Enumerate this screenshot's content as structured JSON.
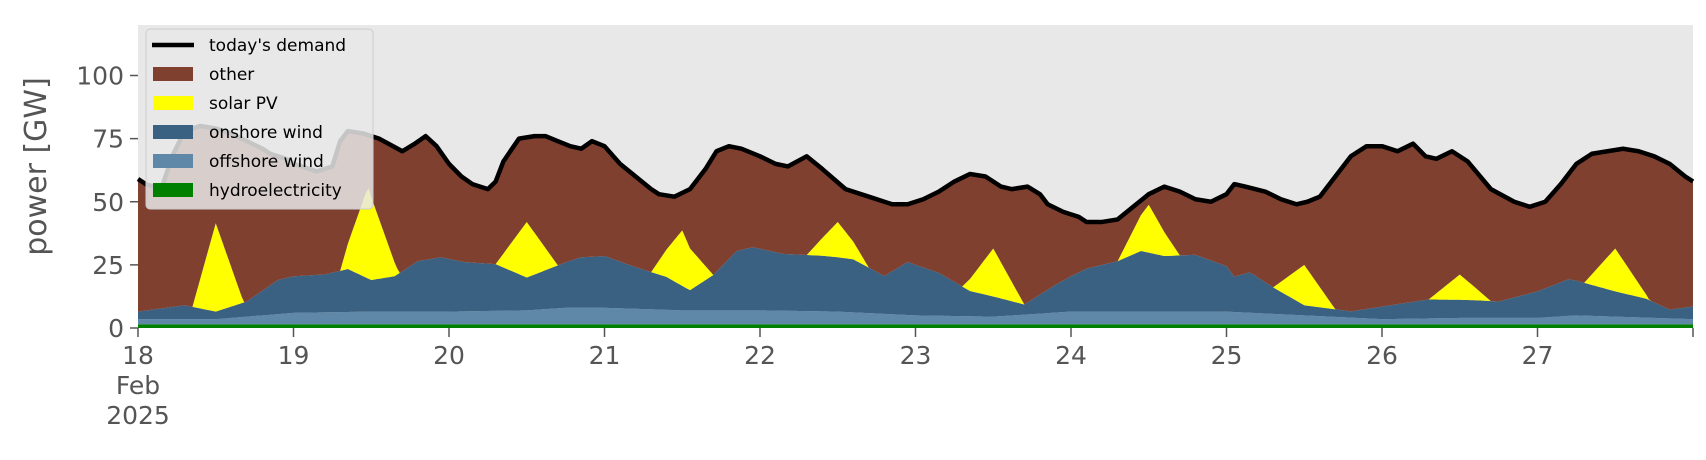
{
  "chart_data": {
    "type": "area",
    "ylabel": "power [GW]",
    "xlabel": "",
    "ylim": [
      0,
      120
    ],
    "xlim_days": [
      18,
      28
    ],
    "month": "Feb",
    "year": "2025",
    "yticks": [
      0,
      25,
      50,
      75,
      100
    ],
    "xticks": [
      {
        "day": 18,
        "label": "18"
      },
      {
        "day": 19,
        "label": "19"
      },
      {
        "day": 20,
        "label": "20"
      },
      {
        "day": 21,
        "label": "21"
      },
      {
        "day": 22,
        "label": "22"
      },
      {
        "day": 23,
        "label": "23"
      },
      {
        "day": 24,
        "label": "24"
      },
      {
        "day": 25,
        "label": "25"
      },
      {
        "day": 26,
        "label": "26"
      },
      {
        "day": 27,
        "label": "27"
      }
    ],
    "legend_placement": "upper-left",
    "grid": false,
    "background": "#e8e8e8",
    "series": [
      {
        "name": "hydroelectricity",
        "kind": "stack",
        "color": "#008000",
        "points": [
          [
            18.0,
            1.5
          ],
          [
            19.0,
            1.5
          ],
          [
            20.0,
            1.5
          ],
          [
            21.0,
            1.5
          ],
          [
            22.0,
            1.5
          ],
          [
            23.0,
            1.5
          ],
          [
            24.0,
            1.5
          ],
          [
            25.0,
            1.5
          ],
          [
            26.0,
            1.5
          ],
          [
            27.0,
            1.5
          ],
          [
            28.0,
            1.5
          ]
        ]
      },
      {
        "name": "offshore wind",
        "kind": "stack",
        "color": "#5f87a8",
        "points": [
          [
            18.0,
            2.0
          ],
          [
            18.5,
            2.0
          ],
          [
            19.0,
            4.5
          ],
          [
            19.5,
            5.0
          ],
          [
            20.0,
            5.0
          ],
          [
            20.5,
            5.5
          ],
          [
            20.75,
            6.5
          ],
          [
            21.0,
            6.5
          ],
          [
            21.5,
            5.5
          ],
          [
            22.0,
            5.5
          ],
          [
            22.5,
            5.0
          ],
          [
            23.0,
            3.5
          ],
          [
            23.5,
            3.0
          ],
          [
            23.75,
            4.0
          ],
          [
            24.0,
            5.0
          ],
          [
            24.5,
            5.0
          ],
          [
            25.0,
            5.0
          ],
          [
            25.5,
            3.5
          ],
          [
            26.0,
            2.0
          ],
          [
            26.5,
            2.5
          ],
          [
            27.0,
            2.5
          ],
          [
            27.25,
            3.5
          ],
          [
            27.5,
            3.0
          ],
          [
            28.0,
            2.0
          ]
        ]
      },
      {
        "name": "onshore wind",
        "kind": "stack",
        "color": "#3b6182",
        "points": [
          [
            18.0,
            3.0
          ],
          [
            18.3,
            5.5
          ],
          [
            18.5,
            3.0
          ],
          [
            18.7,
            6.0
          ],
          [
            18.9,
            13.5
          ],
          [
            19.0,
            14.5
          ],
          [
            19.2,
            15.0
          ],
          [
            19.35,
            17.0
          ],
          [
            19.5,
            12.5
          ],
          [
            19.65,
            14.0
          ],
          [
            19.8,
            20.0
          ],
          [
            19.95,
            21.5
          ],
          [
            20.1,
            19.5
          ],
          [
            20.3,
            18.5
          ],
          [
            20.5,
            13.0
          ],
          [
            20.7,
            17.0
          ],
          [
            20.85,
            20.0
          ],
          [
            21.0,
            20.5
          ],
          [
            21.2,
            16.5
          ],
          [
            21.4,
            13.0
          ],
          [
            21.55,
            8.0
          ],
          [
            21.7,
            14.0
          ],
          [
            21.85,
            23.5
          ],
          [
            21.95,
            25.0
          ],
          [
            22.15,
            22.5
          ],
          [
            22.4,
            22.0
          ],
          [
            22.6,
            21.0
          ],
          [
            22.8,
            15.0
          ],
          [
            22.95,
            21.0
          ],
          [
            23.15,
            17.0
          ],
          [
            23.35,
            10.0
          ],
          [
            23.5,
            8.0
          ],
          [
            23.7,
            4.0
          ],
          [
            23.9,
            11.0
          ],
          [
            24.1,
            17.0
          ],
          [
            24.3,
            20.0
          ],
          [
            24.45,
            24.0
          ],
          [
            24.6,
            22.0
          ],
          [
            24.8,
            22.5
          ],
          [
            25.0,
            18.0
          ],
          [
            25.05,
            14.0
          ],
          [
            25.15,
            16.0
          ],
          [
            25.3,
            10.5
          ],
          [
            25.5,
            4.0
          ],
          [
            25.8,
            2.5
          ],
          [
            26.0,
            5.0
          ],
          [
            26.3,
            7.5
          ],
          [
            26.6,
            7.0
          ],
          [
            26.75,
            6.5
          ],
          [
            27.0,
            10.5
          ],
          [
            27.2,
            14.5
          ],
          [
            27.5,
            10.0
          ],
          [
            27.7,
            7.5
          ],
          [
            27.85,
            3.5
          ],
          [
            28.0,
            5.0
          ]
        ]
      },
      {
        "name": "solar PV",
        "kind": "stack",
        "color": "#ffff00",
        "points": [
          [
            18.0,
            0.0
          ],
          [
            18.35,
            0.0
          ],
          [
            18.5,
            35.0
          ],
          [
            18.68,
            0.0
          ],
          [
            19.3,
            0.0
          ],
          [
            19.48,
            36.5
          ],
          [
            19.68,
            0.0
          ],
          [
            20.3,
            0.0
          ],
          [
            20.5,
            22.0
          ],
          [
            20.7,
            0.0
          ],
          [
            21.3,
            0.0
          ],
          [
            21.5,
            22.0
          ],
          [
            21.7,
            0.0
          ],
          [
            22.3,
            0.0
          ],
          [
            22.5,
            14.0
          ],
          [
            22.7,
            0.0
          ],
          [
            23.3,
            0.0
          ],
          [
            23.5,
            19.0
          ],
          [
            23.7,
            0.0
          ],
          [
            24.3,
            0.0
          ],
          [
            24.5,
            19.0
          ],
          [
            24.7,
            0.0
          ],
          [
            25.3,
            0.0
          ],
          [
            25.5,
            16.0
          ],
          [
            25.7,
            0.0
          ],
          [
            26.3,
            0.0
          ],
          [
            26.5,
            10.0
          ],
          [
            26.7,
            0.0
          ],
          [
            27.3,
            0.0
          ],
          [
            27.5,
            17.0
          ],
          [
            27.72,
            0.0
          ],
          [
            28.0,
            0.0
          ]
        ]
      },
      {
        "name": "other",
        "kind": "fill-to-demand",
        "color": "#804030"
      },
      {
        "name": "today's demand",
        "kind": "line",
        "color": "#000000",
        "points": [
          [
            18.0,
            59
          ],
          [
            18.05,
            57
          ],
          [
            18.15,
            55
          ],
          [
            18.22,
            68
          ],
          [
            18.3,
            78
          ],
          [
            18.4,
            80
          ],
          [
            18.5,
            79
          ],
          [
            18.6,
            77
          ],
          [
            18.7,
            74
          ],
          [
            18.8,
            71
          ],
          [
            18.85,
            69
          ],
          [
            18.95,
            67
          ],
          [
            19.0,
            65
          ],
          [
            19.05,
            64
          ],
          [
            19.15,
            62
          ],
          [
            19.25,
            64
          ],
          [
            19.3,
            74
          ],
          [
            19.35,
            78
          ],
          [
            19.45,
            77
          ],
          [
            19.55,
            75
          ],
          [
            19.7,
            70
          ],
          [
            19.78,
            73
          ],
          [
            19.85,
            76
          ],
          [
            19.92,
            72
          ],
          [
            20.0,
            65
          ],
          [
            20.08,
            60
          ],
          [
            20.15,
            57
          ],
          [
            20.25,
            55
          ],
          [
            20.3,
            58
          ],
          [
            20.35,
            66
          ],
          [
            20.45,
            75
          ],
          [
            20.55,
            76
          ],
          [
            20.62,
            76
          ],
          [
            20.7,
            74
          ],
          [
            20.78,
            72
          ],
          [
            20.85,
            71
          ],
          [
            20.92,
            74
          ],
          [
            21.0,
            72
          ],
          [
            21.1,
            65
          ],
          [
            21.2,
            60
          ],
          [
            21.3,
            55
          ],
          [
            21.35,
            53
          ],
          [
            21.45,
            52
          ],
          [
            21.55,
            55
          ],
          [
            21.65,
            63
          ],
          [
            21.72,
            70
          ],
          [
            21.8,
            72
          ],
          [
            21.88,
            71
          ],
          [
            22.0,
            68
          ],
          [
            22.1,
            65
          ],
          [
            22.18,
            64
          ],
          [
            22.3,
            68
          ],
          [
            22.4,
            63
          ],
          [
            22.55,
            55
          ],
          [
            22.7,
            52
          ],
          [
            22.85,
            49
          ],
          [
            22.95,
            49
          ],
          [
            23.05,
            51
          ],
          [
            23.15,
            54
          ],
          [
            23.25,
            58
          ],
          [
            23.35,
            61
          ],
          [
            23.45,
            60
          ],
          [
            23.55,
            56
          ],
          [
            23.62,
            55
          ],
          [
            23.72,
            56
          ],
          [
            23.8,
            53
          ],
          [
            23.85,
            49
          ],
          [
            23.95,
            46
          ],
          [
            24.05,
            44
          ],
          [
            24.1,
            42
          ],
          [
            24.2,
            42
          ],
          [
            24.3,
            43
          ],
          [
            24.4,
            48
          ],
          [
            24.5,
            53
          ],
          [
            24.6,
            56
          ],
          [
            24.7,
            54
          ],
          [
            24.8,
            51
          ],
          [
            24.9,
            50
          ],
          [
            25.0,
            53
          ],
          [
            25.05,
            57
          ],
          [
            25.12,
            56
          ],
          [
            25.25,
            54
          ],
          [
            25.35,
            51
          ],
          [
            25.45,
            49
          ],
          [
            25.52,
            50
          ],
          [
            25.6,
            52
          ],
          [
            25.7,
            60
          ],
          [
            25.8,
            68
          ],
          [
            25.9,
            72
          ],
          [
            26.0,
            72
          ],
          [
            26.1,
            70
          ],
          [
            26.2,
            73
          ],
          [
            26.28,
            68
          ],
          [
            26.35,
            67
          ],
          [
            26.45,
            70
          ],
          [
            26.55,
            66
          ],
          [
            26.7,
            55
          ],
          [
            26.85,
            50
          ],
          [
            26.95,
            48
          ],
          [
            27.05,
            50
          ],
          [
            27.15,
            57
          ],
          [
            27.25,
            65
          ],
          [
            27.35,
            69
          ],
          [
            27.45,
            70
          ],
          [
            27.55,
            71
          ],
          [
            27.65,
            70
          ],
          [
            27.75,
            68
          ],
          [
            27.85,
            65
          ],
          [
            27.95,
            60
          ],
          [
            28.0,
            58
          ]
        ]
      }
    ]
  }
}
